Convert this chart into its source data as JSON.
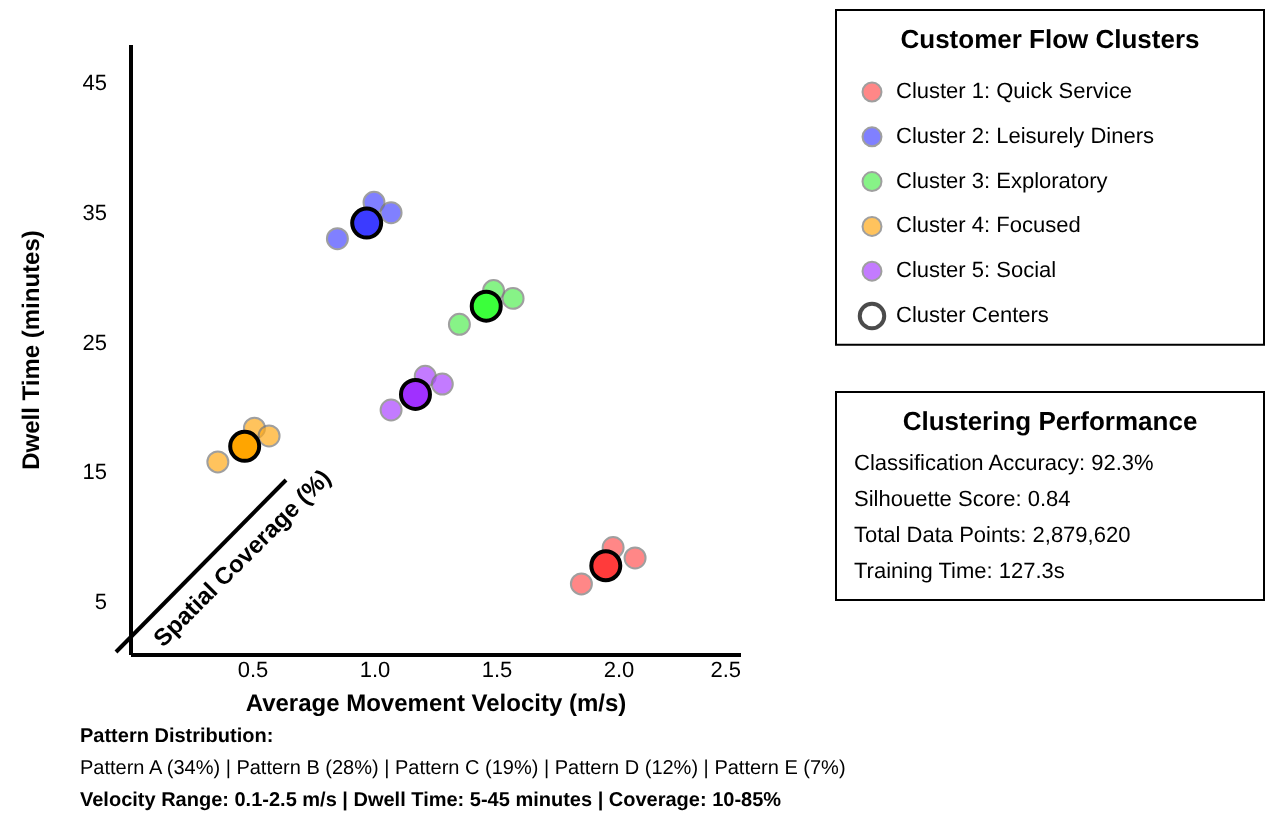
{
  "chart_data": [
    {
      "type": "scatter",
      "xlabel": "Average Movement Velocity (m/s)",
      "ylabel": "Dwell Time (minutes)",
      "xlim": [
        0,
        2.5
      ],
      "xticks": [
        0.5,
        {
          "value": 1,
          "label": "1.0"
        },
        1.5,
        {
          "value": 2,
          "label": "2.0"
        },
        2.5
      ],
      "ylim": [
        1,
        48
      ],
      "yticks": [
        5,
        15,
        25,
        35,
        45
      ],
      "legend_title": "Customer Flow Clusters",
      "legend": "right",
      "marker": "circle",
      "series": [
        {
          "name": "Cluster 1: Quick Service",
          "color": "#ff5555",
          "x": [
            1.85,
            1.98,
            2.07
          ],
          "values": [
            6.4,
            9.2,
            8.4
          ]
        },
        {
          "name": "Cluster 2: Leisurely Diners",
          "color": "#4b4bff",
          "x": [
            0.85,
            1.0,
            1.07
          ],
          "values": [
            33.0,
            35.8,
            35.0
          ]
        },
        {
          "name": "Cluster 3: Exploratory",
          "color": "#55ee55",
          "x": [
            1.35,
            1.49,
            1.57
          ],
          "values": [
            26.4,
            29.0,
            28.4
          ]
        },
        {
          "name": "Cluster 4: Focused",
          "color": "#ffaa1a",
          "x": [
            0.36,
            0.51,
            0.57
          ],
          "values": [
            15.8,
            18.4,
            17.8
          ]
        },
        {
          "name": "Cluster 5: Social",
          "color": "#aa44ff",
          "x": [
            1.07,
            1.21,
            1.28
          ],
          "values": [
            19.8,
            22.4,
            21.8
          ]
        },
        {
          "name": "Cluster Centers",
          "color": "#000000",
          "colors": [
            "#ff3b3b",
            "#3b3bff",
            "#3bff3b",
            "#ffa500",
            "#a030ff"
          ],
          "x": [
            1.95,
            0.97,
            1.46,
            0.47,
            1.17
          ],
          "values": [
            7.8,
            34.2,
            27.8,
            17.0,
            21.0
          ]
        }
      ],
      "annotations": [
        "Spatial Coverage (%)",
        "Pattern Distribution:",
        "Pattern A (34%) | Pattern B (28%) | Pattern C (19%) | Pattern D (12%) | Pattern E (7%)",
        "Velocity Range: 0.1-2.5 m/s | Dwell Time: 5-45 minutes | Coverage: 10-85%"
      ]
    },
    {
      "type": "other",
      "title": "Clustering Performance",
      "annotations": [
        "Classification Accuracy: 92.3%",
        "Silhouette Score: 0.84",
        "Total Data Points: 2,879,620",
        "Training Time: 127.3s"
      ]
    }
  ]
}
